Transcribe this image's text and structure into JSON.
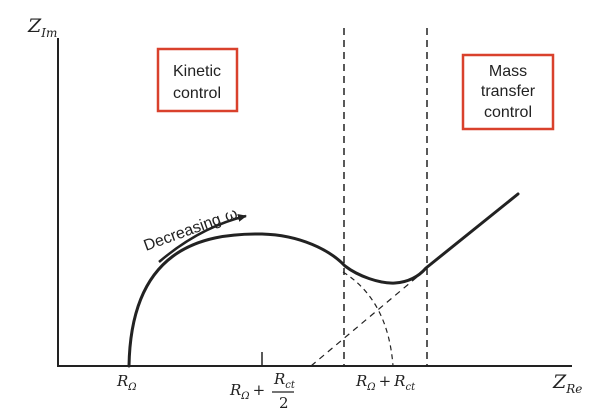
{
  "axes": {
    "y_label": "Z",
    "y_sub": "Im",
    "x_label": "Z",
    "x_sub": "Re"
  },
  "ticks": {
    "r_omega": {
      "main": "R",
      "sub": "Ω"
    },
    "r_mid": {
      "prefix": "R",
      "prefix_sub": "Ω",
      "plus": "+",
      "num": "R",
      "num_sub": "ct",
      "den": "2"
    },
    "r_sum": {
      "a": "R",
      "a_sub": "Ω",
      "plus": "+",
      "b": "R",
      "b_sub": "ct"
    }
  },
  "boxes": {
    "kinetic": [
      "Kinetic",
      "control"
    ],
    "mass": [
      "Mass",
      "transfer",
      "control"
    ]
  },
  "arrow": {
    "label": "Decreasing",
    "symbol": "ω"
  },
  "colors": {
    "box_border": "#d9412c",
    "ink": "#222222"
  }
}
